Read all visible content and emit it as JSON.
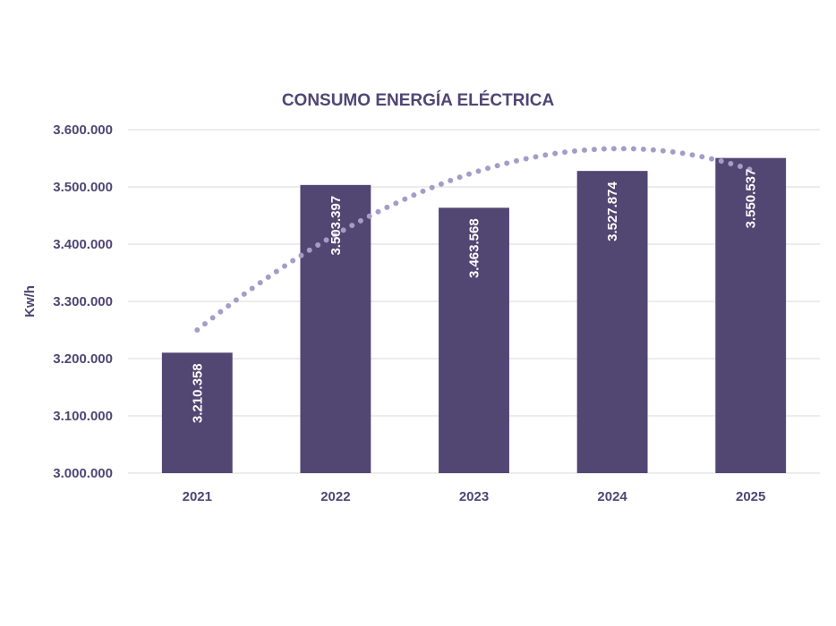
{
  "chart_data": {
    "type": "bar",
    "title": "CONSUMO ENERGÍA ELÉCTRICA",
    "xlabel": "",
    "ylabel": "Kw/h",
    "categories": [
      "2021",
      "2022",
      "2023",
      "2024",
      "2025"
    ],
    "values": [
      3210358,
      3503397,
      3463568,
      3527874,
      3550537
    ],
    "value_labels": [
      "3.210.358",
      "3.503.397",
      "3.463.568",
      "3.527.874",
      "3.550.537"
    ],
    "ylim": [
      3000000,
      3600000
    ],
    "yticks": [
      3000000,
      3100000,
      3200000,
      3300000,
      3400000,
      3500000,
      3600000
    ],
    "ytick_labels": [
      "3.000.000",
      "3.100.000",
      "3.200.000",
      "3.300.000",
      "3.400.000",
      "3.500.000",
      "3.600.000"
    ],
    "grid": true,
    "legend": "none",
    "trendline": {
      "type": "polynomial",
      "style": "dotted",
      "color": "#a59cc8",
      "start_value": 3250000,
      "end_value": 3530000
    },
    "colors": {
      "bar": "#524673",
      "text": "#4f4674",
      "trend": "#a59cc8",
      "grid": "#d9d9d9"
    }
  }
}
